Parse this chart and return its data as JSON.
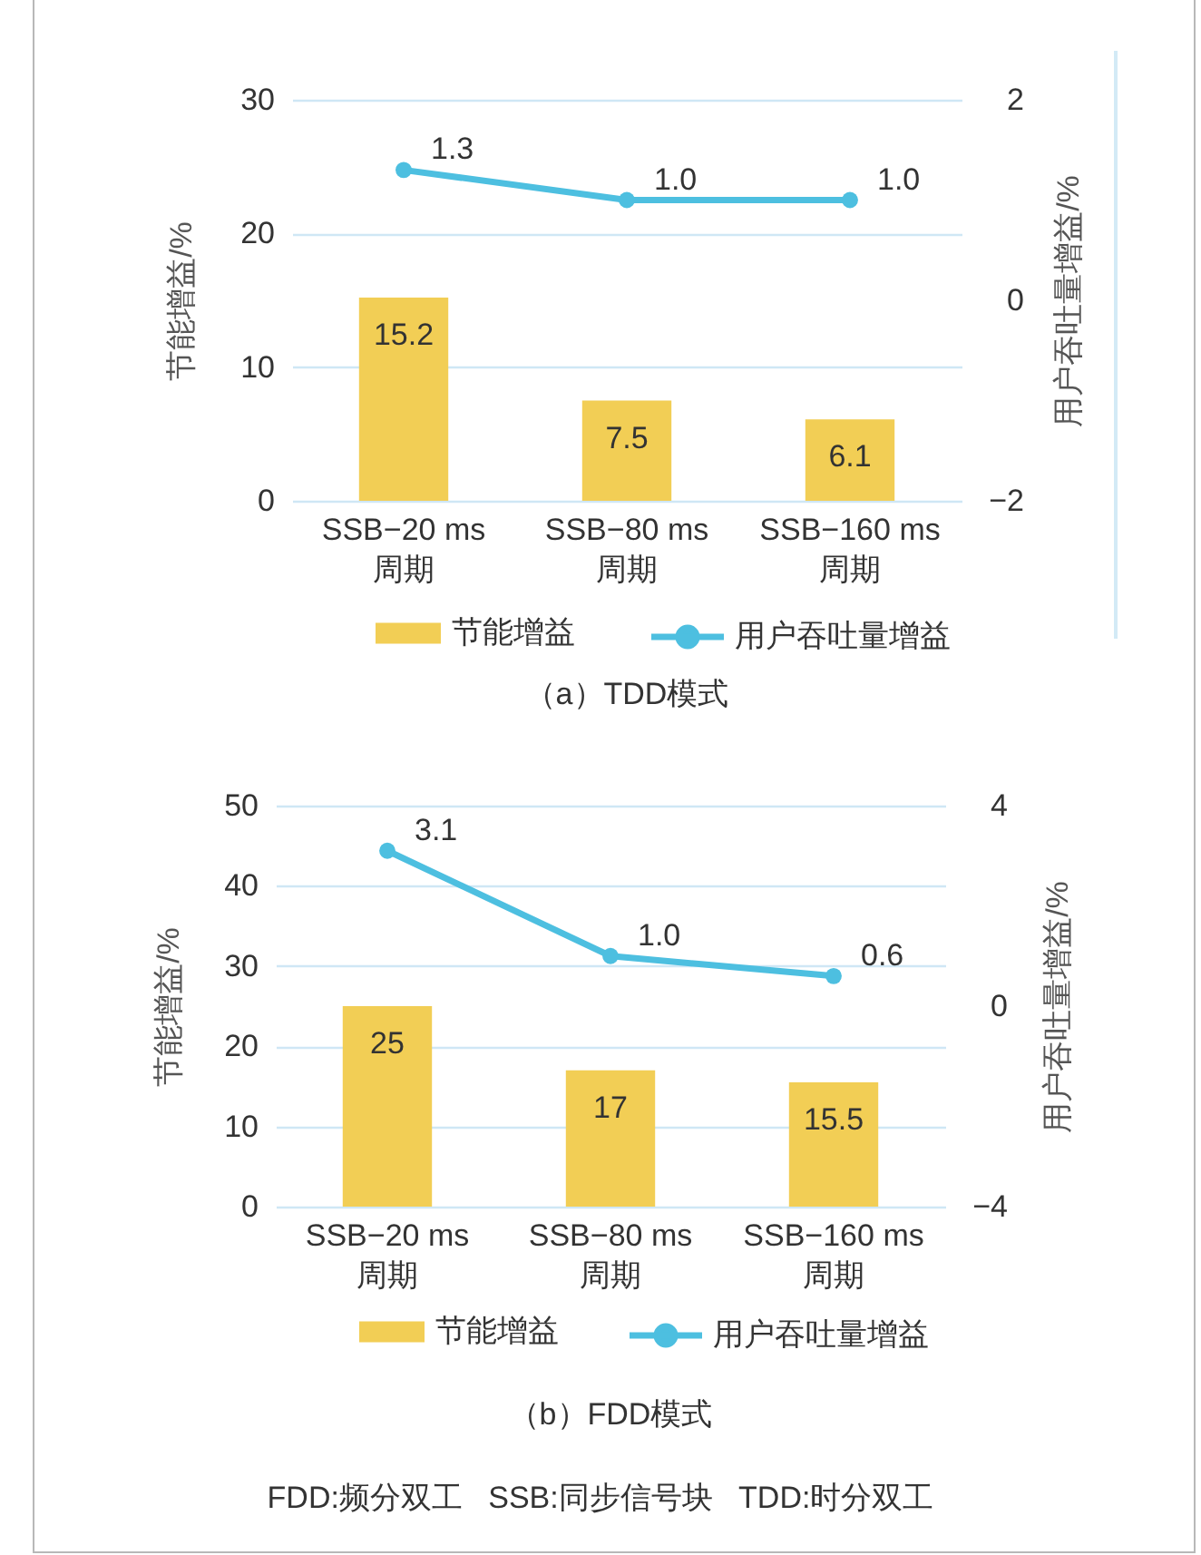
{
  "chart_data": [
    {
      "type": "bar",
      "title": "（a）TDD模式",
      "ylabel": "节能增益/%",
      "y2label": "用户吞吐量增益/%",
      "categories": [
        "SSB−20 ms 周期",
        "SSB−80 ms 周期",
        "SSB−160 ms 周期"
      ],
      "series": [
        {
          "name": "节能增益",
          "color": "#f2ce55",
          "values": [
            15.2,
            7.5,
            6.1
          ],
          "value_labels": [
            "15.2",
            "7.5",
            "6.1"
          ]
        },
        {
          "name": "用户吞吐量增益",
          "type": "line",
          "axis": "y2",
          "color": "#4dbfe0",
          "values": [
            1.3,
            1.0,
            1.0
          ],
          "value_labels": [
            "1.3",
            "1.0",
            "1.0"
          ]
        }
      ],
      "ylim": [
        0,
        30
      ],
      "yticks": [
        0,
        10,
        20,
        30
      ],
      "y2lim": [
        -2,
        2
      ],
      "y2ticks": [
        -2,
        0,
        2
      ],
      "grid": "y",
      "legend": "bottom",
      "marker": "circle"
    },
    {
      "type": "bar",
      "title": "（b）FDD模式",
      "ylabel": "节能增益/%",
      "y2label": "用户吞吐量增益/%",
      "categories": [
        "SSB−20 ms 周期",
        "SSB−80 ms 周期",
        "SSB−160 ms 周期"
      ],
      "series": [
        {
          "name": "节能增益",
          "color": "#f2ce55",
          "values": [
            25,
            17,
            15.5
          ],
          "value_labels": [
            "25",
            "17",
            "15.5"
          ]
        },
        {
          "name": "用户吞吐量增益",
          "type": "line",
          "axis": "y2",
          "color": "#4dbfe0",
          "values": [
            3.1,
            1.0,
            0.6
          ],
          "value_labels": [
            "3.1",
            "1.0",
            "0.6"
          ]
        }
      ],
      "ylim": [
        0,
        50
      ],
      "yticks": [
        0,
        10,
        20,
        30,
        40,
        50
      ],
      "y2lim": [
        -4,
        4
      ],
      "y2ticks": [
        -4,
        0,
        4
      ],
      "grid": "y",
      "legend": "bottom",
      "marker": "circle",
      "annotations": [
        "FDD:频分双工   SSB:同步信号块   TDD:时分双工"
      ]
    }
  ]
}
